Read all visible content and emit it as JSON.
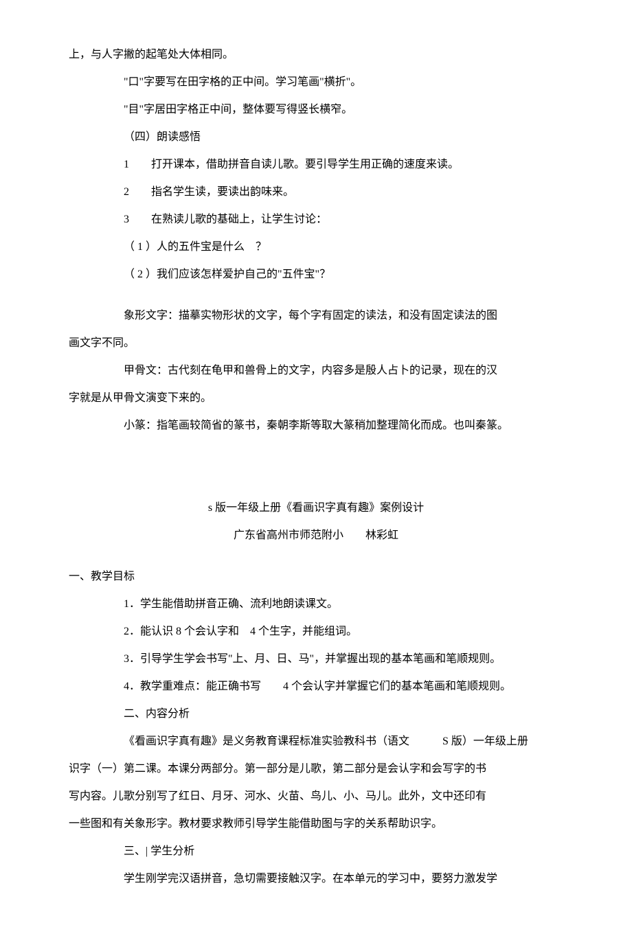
{
  "lines": {
    "l1": "上，与人字撇的起笔处大体相同。",
    "l2": "\"口\"字要写在田字格的正中间。学习笔画\"横折\"。",
    "l3": "\"目\"字居田字格正中间，整体要写得竖长横窄。",
    "l4": "（四）朗读感悟",
    "l5": "1　　打开课本，借助拼音自读儿歌。要引导学生用正确的速度来读。",
    "l6": "2　　指名学生读，要读出韵味来。",
    "l7": "3　　在熟读儿歌的基础上，让学生讨论：",
    "l8": "（ 1 ）人的五件宝是什么　？",
    "l9": "（ 2 ）我们应该怎样爱护自己的\"五件宝\"？",
    "l10a": "象形文字：描摹实物形状的文字，每个字有固定的读法，和没有固定读法的图",
    "l10b": "画文字不同。",
    "l11a": "甲骨文：古代刻在龟甲和兽骨上的文字，内容多是殷人占卜的记录，现在的汉",
    "l11b": "字就是从甲骨文演变下来的。",
    "l12": "小篆：指笔画较简省的篆书，秦朝李斯等取大篆稍加整理简化而成。也叫秦篆。",
    "title": "s 版一年级上册《看画识字真有趣》案例设计",
    "subtitle": "广东省高州市师范附小　　林彩虹",
    "h1": "一、教学目标",
    "t1": "1．学生能借助拼音正确、流利地朗读课文。",
    "t2": "2．能认识 8 个会认字和　4 个生字，并能组词。",
    "t3": "3．引导学生学会书写\"上、月、日、马\"，并掌握出现的基本笔画和笔顺规则。",
    "t4": "4．教学重难点：能正确书写　　4 个会认字并掌握它们的基本笔画和笔顺规则。",
    "h2": "二、内容分析",
    "c1a": "《看画识字真有趣》是义务教育课程标准实验教科书（语文　　　S 版）一年级上册",
    "c1b": "识字（一）第二课。本课分两部分。第一部分是儿歌，第二部分是会认字和会写字的书",
    "c1c": "写内容。儿歌分别写了红日、月牙、河水、火苗、鸟儿、小、马儿。此外，文中还印有",
    "c1d": "一些图和有关象形字。教材要求教师引导学生能借助图与字的关系帮助识字。",
    "h3": "三、| 学生分析",
    "s1": "学生刚学完汉语拼音，急切需要接触汉字。在本单元的学习中，要努力激发学"
  },
  "style": {
    "background_color": "#ffffff",
    "text_color": "#000000",
    "font_size": 16,
    "line_height": 2.5
  }
}
